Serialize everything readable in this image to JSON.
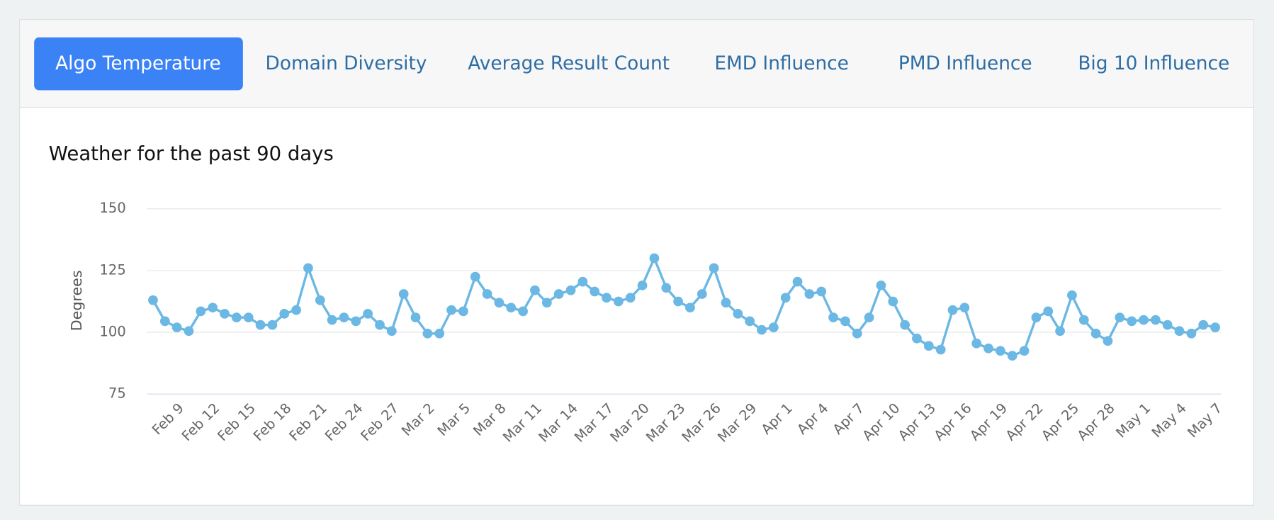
{
  "tabs": [
    "Algo Temperature",
    "Domain Diversity",
    "Average Result Count",
    "EMD Influence",
    "PMD Influence",
    "Big 10 Influence"
  ],
  "chart_data": {
    "type": "line",
    "title": "Weather for the past 90 days",
    "y_label": "Degrees",
    "categories": [
      null,
      null,
      "Feb 9",
      null,
      null,
      "Feb 12",
      null,
      null,
      "Feb 15",
      null,
      null,
      "Feb 18",
      null,
      null,
      "Feb 21",
      null,
      null,
      "Feb 24",
      null,
      null,
      "Feb 27",
      null,
      null,
      "Mar 2",
      null,
      null,
      "Mar 5",
      null,
      null,
      "Mar 8",
      null,
      null,
      "Mar 11",
      null,
      null,
      "Mar 14",
      null,
      null,
      "Mar 17",
      null,
      null,
      "Mar 20",
      null,
      null,
      "Mar 23",
      null,
      null,
      "Mar 26",
      null,
      null,
      "Mar 29",
      null,
      null,
      "Apr 1",
      null,
      null,
      "Apr 4",
      null,
      null,
      "Apr 7",
      null,
      null,
      "Apr 10",
      null,
      null,
      "Apr 13",
      null,
      null,
      "Apr 16",
      null,
      null,
      "Apr 19",
      null,
      null,
      "Apr 22",
      null,
      null,
      "Apr 25",
      null,
      null,
      "Apr 28",
      null,
      null,
      "May 1",
      null,
      null,
      "May 4",
      null,
      null,
      "May 7"
    ],
    "series": [
      {
        "name": "Degrees",
        "color": "#6cb8e4",
        "values": [
          113,
          104.5,
          102,
          100.5,
          108.5,
          110,
          107.5,
          106,
          106,
          103,
          103,
          107.5,
          109,
          126,
          113,
          105,
          106,
          104.5,
          107.5,
          103,
          100.5,
          115.5,
          106,
          99.5,
          99.5,
          109,
          108.5,
          122.5,
          115.5,
          112,
          110,
          108.5,
          117,
          112,
          115.5,
          117,
          120.5,
          116.5,
          114,
          112.5,
          114,
          119,
          130,
          118,
          112.5,
          110,
          115.5,
          126,
          112,
          107.5,
          104.5,
          101,
          102,
          114,
          120.5,
          115.5,
          116.5,
          106,
          104.5,
          99.5,
          106,
          119,
          112.5,
          103,
          97.5,
          94.5,
          93,
          109,
          110,
          95.5,
          93.5,
          92.5,
          90.5,
          92.5,
          106,
          108.5,
          100.5,
          115,
          105,
          99.5,
          96.5,
          106,
          104.5,
          105,
          105,
          103,
          100.5,
          99.5,
          103,
          102
        ]
      }
    ],
    "ylim": [
      75,
      150
    ],
    "yticks": [
      75,
      100,
      125,
      150
    ],
    "grid": true,
    "legend": false
  }
}
